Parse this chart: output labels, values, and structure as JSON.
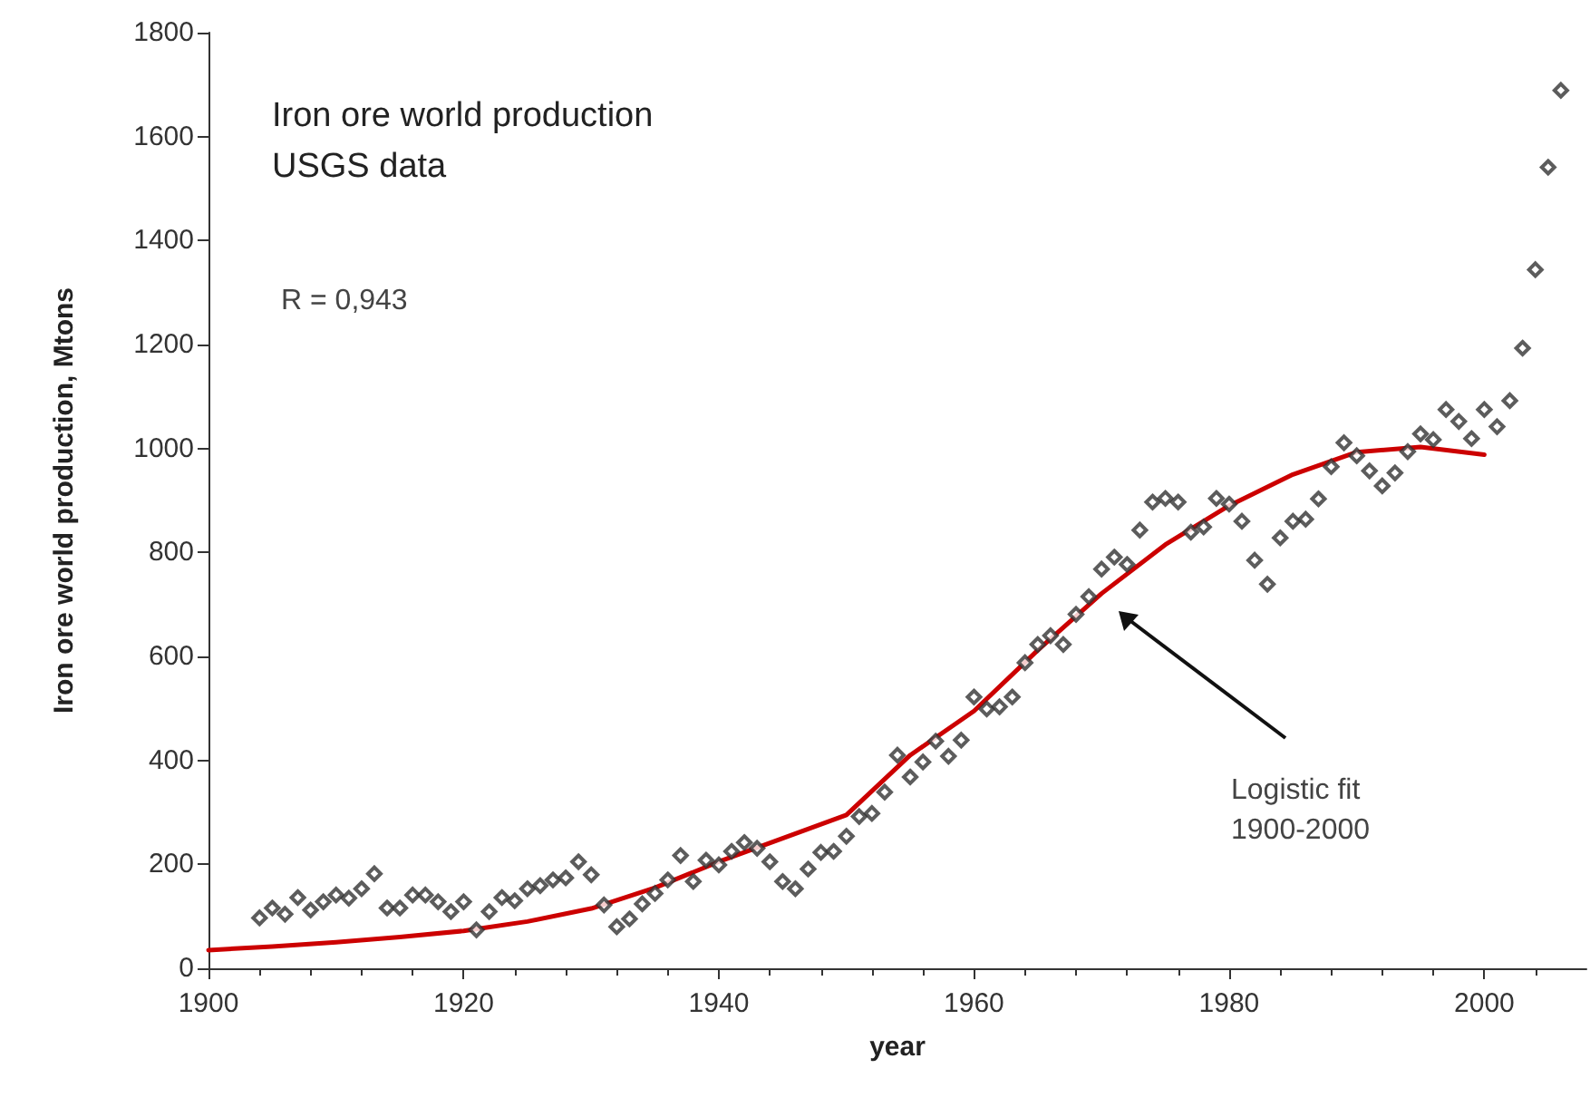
{
  "chart_data": {
    "type": "scatter",
    "title": "Iron ore world production\nUSGS data",
    "xlabel": "year",
    "ylabel": "Iron ore world production, Mtons",
    "annotations": [
      "R = 0,943",
      "Logistic fit\n1900-2000"
    ],
    "xlim": [
      1900,
      2008
    ],
    "xticks": [
      1900,
      1920,
      1940,
      1960,
      1980,
      2000
    ],
    "ylim": [
      0,
      1800
    ],
    "yticks": [
      0,
      200,
      400,
      600,
      800,
      1000,
      1200,
      1400,
      1600,
      1800
    ],
    "grid": false,
    "marker": "diamond",
    "series": [
      {
        "color": "#333333",
        "x": [
          1904,
          1905,
          1906,
          1907,
          1908,
          1909,
          1910,
          1911,
          1912,
          1913,
          1914,
          1915,
          1916,
          1917,
          1918,
          1919,
          1920,
          1921,
          1922,
          1923,
          1924,
          1925,
          1926,
          1927,
          1928,
          1929,
          1930,
          1931,
          1932,
          1933,
          1934,
          1935,
          1936,
          1937,
          1938,
          1939,
          1940,
          1941,
          1942,
          1943,
          1944,
          1945,
          1946,
          1947,
          1948,
          1949,
          1950,
          1951,
          1952,
          1953,
          1954,
          1955,
          1956,
          1957,
          1958,
          1959,
          1960,
          1961,
          1962,
          1963,
          1964,
          1965,
          1966,
          1967,
          1968,
          1969,
          1970,
          1971,
          1972,
          1973,
          1974,
          1975,
          1976,
          1977,
          1978,
          1979,
          1980,
          1981,
          1982,
          1983,
          1984,
          1985,
          1986,
          1987,
          1988,
          1989,
          1990,
          1991,
          1992,
          1993,
          1994,
          1995,
          1996,
          1997,
          1998,
          1999,
          2000,
          2001,
          2002,
          2003,
          2004,
          2005,
          2006
        ],
        "values": [
          97,
          116,
          104,
          136,
          112,
          128,
          141,
          135,
          153,
          182,
          116,
          116,
          141,
          141,
          128,
          109,
          128,
          74,
          109,
          136,
          130,
          153,
          159,
          170,
          174,
          205,
          180,
          122,
          80,
          95,
          124,
          144,
          170,
          217,
          167,
          208,
          199,
          225,
          242,
          231,
          205,
          167,
          153,
          191,
          223,
          225,
          254,
          292,
          298,
          339,
          410,
          368,
          397,
          437,
          408,
          439,
          522,
          499,
          503,
          522,
          588,
          623,
          640,
          623,
          681,
          715,
          768,
          791,
          777,
          843,
          897,
          904,
          897,
          839,
          849,
          904,
          893,
          860,
          785,
          739,
          828,
          860,
          864,
          903,
          965,
          1011,
          986,
          957,
          928,
          953,
          994,
          1028,
          1017,
          1075,
          1052,
          1019,
          1075,
          1042,
          1092,
          1193,
          1344,
          1541,
          1689
        ]
      },
      {
        "type": "line",
        "color": "#cc0000",
        "line_style": "solid",
        "marker": "none",
        "x": [
          1900,
          1905,
          1910,
          1915,
          1920,
          1925,
          1930,
          1935,
          1940,
          1945,
          1950,
          1955,
          1960,
          1965,
          1970,
          1975,
          1980,
          1985,
          1990,
          1995,
          2000
        ],
        "values": [
          35,
          42,
          50,
          60,
          72,
          90,
          115,
          155,
          205,
          250,
          295,
          410,
          495,
          612,
          721,
          815,
          890,
          950,
          993,
          1003,
          988
        ]
      }
    ]
  }
}
